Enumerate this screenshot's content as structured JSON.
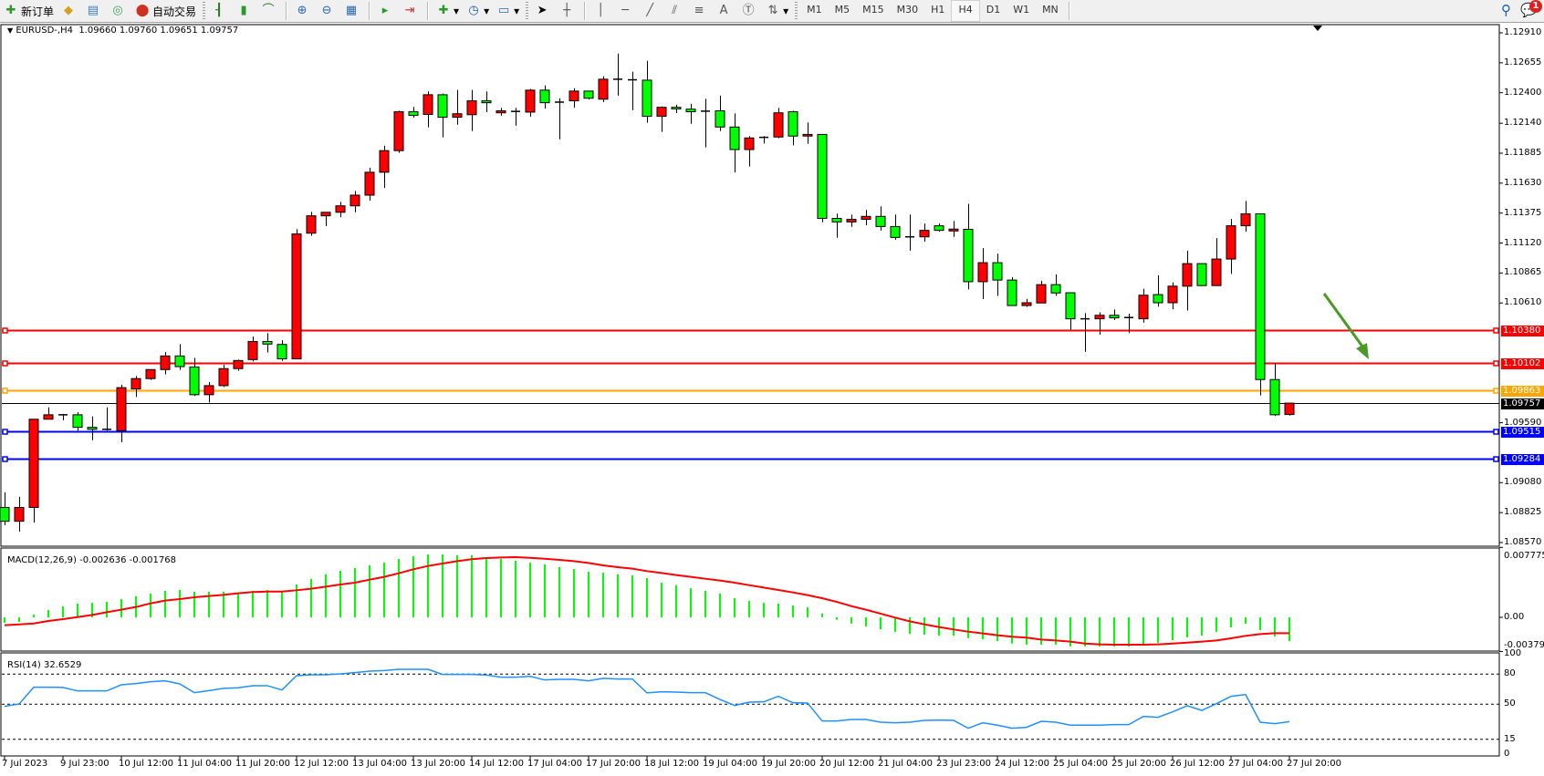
{
  "toolbar": {
    "new_order_label": "新订单",
    "auto_trading_label": "自动交易",
    "icons": [
      "new-order-icon",
      "market-watch-icon",
      "navigator-icon",
      "signals-icon",
      "auto-trading-icon",
      "bar-chart-icon",
      "candlestick-icon",
      "line-chart-icon",
      "zoom-in-icon",
      "zoom-out-icon",
      "tile-windows-icon",
      "auto-scroll-icon",
      "chart-shift-icon",
      "indicators-icon",
      "periods-icon",
      "templates-icon",
      "cursor-icon",
      "crosshair-icon",
      "vertical-line-icon",
      "horizontal-line-icon",
      "trendline-icon",
      "equidistant-channel-icon",
      "fibonacci-icon",
      "text-icon",
      "text-label-icon",
      "arrows-icon"
    ],
    "timeframes": [
      "M1",
      "M5",
      "M15",
      "M30",
      "H1",
      "H4",
      "D1",
      "W1",
      "MN"
    ],
    "active_timeframe": "H4",
    "notification_count": "1"
  },
  "chart": {
    "header": "EURUSD-,H4  1.09660 1.09760 1.09651 1.09757",
    "price_axis_labels": [
      "1.12910",
      "1.12655",
      "1.12400",
      "1.12140",
      "1.11885",
      "1.11630",
      "1.11375",
      "1.11120",
      "1.10865",
      "1.10610",
      "1.09590",
      "1.09080",
      "1.08825",
      "1.08570"
    ],
    "price_lines": [
      {
        "value": "1.10380",
        "color": "#ff0000"
      },
      {
        "value": "1.10102",
        "color": "#ff0000"
      },
      {
        "value": "1.09863",
        "color": "#ffa500"
      },
      {
        "value": "1.09757",
        "color": "#000000"
      },
      {
        "value": "1.09515",
        "color": "#0000ff"
      },
      {
        "value": "1.09284",
        "color": "#0000ff"
      }
    ],
    "bull_color": "#ff0000",
    "bear_color": "#00ff00",
    "annotation": {
      "type": "arrow",
      "color": "#4a9a2a",
      "from_price": 1.1069,
      "to_price": 1.1013,
      "direction": "down"
    },
    "time_labels": [
      "7 Jul 2023",
      "9 Jul 23:00",
      "10 Jul 12:00",
      "11 Jul 04:00",
      "11 Jul 20:00",
      "12 Jul 12:00",
      "13 Jul 04:00",
      "13 Jul 20:00",
      "14 Jul 12:00",
      "17 Jul 04:00",
      "17 Jul 20:00",
      "18 Jul 12:00",
      "19 Jul 04:00",
      "19 Jul 20:00",
      "20 Jul 12:00",
      "21 Jul 04:00",
      "23 Jul 23:00",
      "24 Jul 12:00",
      "25 Jul 04:00",
      "25 Jul 20:00",
      "26 Jul 12:00",
      "27 Jul 04:00",
      "27 Jul 20:00"
    ]
  },
  "macd": {
    "label": "MACD(12,26,9) -0.002636 -0.001768",
    "axis_labels": [
      "0.007775",
      "0.00",
      "-0.003797"
    ],
    "hist_color": "#00ff00",
    "signal_color": "#ff0000"
  },
  "rsi": {
    "label": "RSI(14) 32.6529",
    "axis_labels": [
      "100",
      "80",
      "50",
      "15",
      "0"
    ],
    "levels": [
      80,
      50,
      15
    ],
    "line_color": "#1e90ff"
  },
  "chart_data": {
    "type": "candlestick",
    "symbol": "EURUSD-",
    "timeframe": "H4",
    "ohlc": [
      [
        1.08869,
        1.08998,
        1.08718,
        1.08751
      ],
      [
        1.08751,
        1.0896,
        1.08663,
        1.08869
      ],
      [
        1.08869,
        1.0962,
        1.0874,
        1.0962
      ],
      [
        1.0962,
        1.09721,
        1.0962,
        1.09658
      ],
      [
        1.09655,
        1.09666,
        1.09611,
        1.09658
      ],
      [
        1.09658,
        1.0968,
        1.09523,
        1.09551
      ],
      [
        1.09551,
        1.09644,
        1.09441,
        1.09534
      ],
      [
        1.09534,
        1.09721,
        1.09523,
        1.09529
      ],
      [
        1.09523,
        1.09914,
        1.09424,
        1.09889
      ],
      [
        1.09878,
        1.09988,
        1.09809,
        1.09966
      ],
      [
        1.09966,
        1.10043,
        1.09955,
        1.10043
      ],
      [
        1.10043,
        1.10192,
        1.10002,
        1.10159
      ],
      [
        1.10159,
        1.1026,
        1.1004,
        1.10068
      ],
      [
        1.10065,
        1.10142,
        1.09818,
        1.09829
      ],
      [
        1.09829,
        1.09936,
        1.09763,
        1.09906
      ],
      [
        1.09906,
        1.10084,
        1.09895,
        1.10051
      ],
      [
        1.10051,
        1.10128,
        1.10032,
        1.1012
      ],
      [
        1.10128,
        1.10324,
        1.10112,
        1.10282
      ],
      [
        1.10282,
        1.10354,
        1.10189,
        1.1026
      ],
      [
        1.10257,
        1.10293,
        1.10117,
        1.10134
      ],
      [
        1.10134,
        1.11239,
        1.10134,
        1.11198
      ],
      [
        1.11204,
        1.11385,
        1.11182,
        1.11352
      ],
      [
        1.11352,
        1.11382,
        1.11264,
        1.11382
      ],
      [
        1.11382,
        1.1147,
        1.11341,
        1.11437
      ],
      [
        1.11437,
        1.11564,
        1.11381,
        1.11528
      ],
      [
        1.11528,
        1.11762,
        1.11481,
        1.11723
      ],
      [
        1.11723,
        1.11949,
        1.11589,
        1.11907
      ],
      [
        1.11907,
        1.12246,
        1.11888,
        1.12238
      ],
      [
        1.12238,
        1.12279,
        1.12188,
        1.12207
      ],
      [
        1.12215,
        1.12411,
        1.12105,
        1.12383
      ],
      [
        1.12383,
        1.12394,
        1.1202,
        1.12191
      ],
      [
        1.12191,
        1.12425,
        1.12128,
        1.12221
      ],
      [
        1.12213,
        1.12425,
        1.12073,
        1.12331
      ],
      [
        1.12331,
        1.12411,
        1.12235,
        1.12315
      ],
      [
        1.12229,
        1.12271,
        1.12205,
        1.12246
      ],
      [
        1.1224,
        1.12271,
        1.12119,
        1.12241
      ],
      [
        1.12235,
        1.12433,
        1.12196,
        1.12422
      ],
      [
        1.12422,
        1.12463,
        1.12265,
        1.12315
      ],
      [
        1.1232,
        1.12353,
        1.12004,
        1.12318
      ],
      [
        1.12331,
        1.12438,
        1.12273,
        1.12414
      ],
      [
        1.12414,
        1.12414,
        1.12342,
        1.12353
      ],
      [
        1.12345,
        1.1254,
        1.1232,
        1.12515
      ],
      [
        1.12515,
        1.12733,
        1.12375,
        1.12515
      ],
      [
        1.1251,
        1.12579,
        1.12251,
        1.12509
      ],
      [
        1.12507,
        1.12672,
        1.12144,
        1.12199
      ],
      [
        1.12199,
        1.12284,
        1.12067,
        1.12276
      ],
      [
        1.12276,
        1.12298,
        1.12227,
        1.12262
      ],
      [
        1.1226,
        1.12306,
        1.12136,
        1.12238
      ],
      [
        1.12243,
        1.12348,
        1.11935,
        1.12242
      ],
      [
        1.12246,
        1.12375,
        1.12073,
        1.12108
      ],
      [
        1.12108,
        1.12224,
        1.11721,
        1.11916
      ],
      [
        1.11916,
        1.12031,
        1.11773,
        1.12015
      ],
      [
        1.12018,
        1.12031,
        1.11968,
        1.1202
      ],
      [
        1.12023,
        1.12271,
        1.12012,
        1.12229
      ],
      [
        1.12238,
        1.12246,
        1.11952,
        1.12031
      ],
      [
        1.12031,
        1.12147,
        1.11965,
        1.12045
      ],
      [
        1.12045,
        1.12045,
        1.11297,
        1.1133
      ],
      [
        1.1133,
        1.11371,
        1.11165,
        1.113
      ],
      [
        1.113,
        1.11363,
        1.11258,
        1.11322
      ],
      [
        1.11322,
        1.11402,
        1.11272,
        1.11347
      ],
      [
        1.11347,
        1.11432,
        1.11226,
        1.11261
      ],
      [
        1.11261,
        1.11363,
        1.11149,
        1.11168
      ],
      [
        1.11173,
        1.11363,
        1.11055,
        1.11173
      ],
      [
        1.11173,
        1.11286,
        1.11132,
        1.11228
      ],
      [
        1.11267,
        1.11286,
        1.11217,
        1.11228
      ],
      [
        1.11223,
        1.11308,
        1.11173,
        1.11239
      ],
      [
        1.11237,
        1.11454,
        1.10725,
        1.10791
      ],
      [
        1.10791,
        1.11077,
        1.10643,
        1.10953
      ],
      [
        1.10953,
        1.1103,
        1.1067,
        1.10805
      ],
      [
        1.10805,
        1.1083,
        1.10588,
        1.10588
      ],
      [
        1.10588,
        1.10645,
        1.10577,
        1.10612
      ],
      [
        1.1061,
        1.10799,
        1.1061,
        1.10766
      ],
      [
        1.10766,
        1.10854,
        1.1067,
        1.10695
      ],
      [
        1.10697,
        1.10697,
        1.10381,
        1.10475
      ],
      [
        1.10475,
        1.10524,
        1.10194,
        1.10475
      ],
      [
        1.10475,
        1.1053,
        1.1034,
        1.10505
      ],
      [
        1.10505,
        1.10555,
        1.10464,
        1.10483
      ],
      [
        1.10486,
        1.10519,
        1.10354,
        1.10486
      ],
      [
        1.10475,
        1.10731,
        1.10442,
        1.10676
      ],
      [
        1.10681,
        1.10846,
        1.10579,
        1.10612
      ],
      [
        1.10612,
        1.10786,
        1.10557,
        1.10753
      ],
      [
        1.10753,
        1.11055,
        1.10546,
        1.10945
      ],
      [
        1.10945,
        1.10945,
        1.10758,
        1.10758
      ],
      [
        1.10758,
        1.11162,
        1.10758,
        1.10984
      ],
      [
        1.10984,
        1.11325,
        1.10857,
        1.11267
      ],
      [
        1.11267,
        1.11479,
        1.11217,
        1.11369
      ],
      [
        1.11369,
        1.11369,
        1.09823,
        1.09958
      ],
      [
        1.09958,
        1.10098,
        1.09647,
        1.09658
      ],
      [
        1.0966,
        1.0976,
        1.09651,
        1.09757
      ]
    ],
    "price_range": [
      1.0857,
      1.1291
    ],
    "macd_hist": [
      -0.00061,
      -0.00051,
      0.0003,
      0.00081,
      0.00122,
      0.00152,
      0.00162,
      0.00172,
      0.00203,
      0.00233,
      0.00264,
      0.00294,
      0.00304,
      0.00284,
      0.00284,
      0.00284,
      0.00274,
      0.00294,
      0.00304,
      0.00294,
      0.00365,
      0.00426,
      0.00477,
      0.00517,
      0.00548,
      0.00578,
      0.00608,
      0.00649,
      0.00679,
      0.007,
      0.007,
      0.0069,
      0.0069,
      0.00659,
      0.00649,
      0.00629,
      0.00608,
      0.00588,
      0.00558,
      0.00537,
      0.00507,
      0.00497,
      0.00477,
      0.00466,
      0.00436,
      0.00385,
      0.00358,
      0.00324,
      0.00294,
      0.00264,
      0.00213,
      0.00183,
      0.00162,
      0.00152,
      0.00132,
      0.00111,
      0.00041,
      -0.00027,
      -0.00068,
      -0.00101,
      -0.00132,
      -0.00162,
      -0.00183,
      -0.00193,
      -0.00203,
      -0.00203,
      -0.0023,
      -0.00243,
      -0.00264,
      -0.00291,
      -0.00304,
      -0.00304,
      -0.00304,
      -0.00324,
      -0.00324,
      -0.00324,
      -0.00324,
      -0.00324,
      -0.00304,
      -0.00284,
      -0.00254,
      -0.00223,
      -0.00203,
      -0.00162,
      -0.00112,
      -0.00071,
      -0.00142,
      -0.00213,
      -0.002636
    ],
    "macd_signal": [
      -0.00088,
      -0.00078,
      -0.00068,
      -0.00041,
      -0.0002,
      3e-05,
      0.00027,
      0.00057,
      0.00085,
      0.00115,
      0.00155,
      0.00186,
      0.00203,
      0.00223,
      0.00237,
      0.0025,
      0.00267,
      0.00281,
      0.00287,
      0.00287,
      0.00301,
      0.00318,
      0.00341,
      0.00365,
      0.00385,
      0.00419,
      0.0045,
      0.0049,
      0.00534,
      0.00571,
      0.00598,
      0.00625,
      0.00646,
      0.00659,
      0.00666,
      0.00669,
      0.00662,
      0.00652,
      0.00639,
      0.00625,
      0.00605,
      0.00578,
      0.00558,
      0.00541,
      0.00514,
      0.00493,
      0.0047,
      0.0045,
      0.00429,
      0.00409,
      0.00385,
      0.00358,
      0.00331,
      0.00304,
      0.00277,
      0.00247,
      0.00213,
      0.00172,
      0.00125,
      0.00085,
      0.00041,
      -3e-05,
      -0.00044,
      -0.00078,
      -0.00108,
      -0.00135,
      -0.00159,
      -0.00179,
      -0.00199,
      -0.00216,
      -0.00226,
      -0.00247,
      -0.00257,
      -0.0027,
      -0.00291,
      -0.00301,
      -0.00304,
      -0.00304,
      -0.00304,
      -0.00301,
      -0.00291,
      -0.00281,
      -0.0027,
      -0.00257,
      -0.00233,
      -0.00206,
      -0.00186,
      -0.00176,
      -0.001768
    ],
    "macd_range": [
      -0.003797,
      0.007775
    ],
    "rsi": [
      47.9,
      50.3,
      67,
      67,
      66.7,
      63.3,
      63.3,
      63.3,
      69.4,
      70.6,
      72.4,
      73.3,
      70.3,
      61.5,
      63.6,
      65.8,
      66.4,
      68.5,
      68.5,
      64.2,
      78.5,
      79.4,
      79.4,
      80.3,
      81.5,
      83,
      83.6,
      84.8,
      84.8,
      84.8,
      79.7,
      79.7,
      79.7,
      79.1,
      77,
      77,
      77.9,
      74.2,
      74.8,
      74.8,
      73.3,
      75.8,
      75.2,
      75.2,
      61.3,
      62.4,
      62.1,
      61.5,
      61.5,
      54.8,
      48.8,
      52.1,
      52.4,
      57.9,
      51.5,
      51.2,
      33.3,
      33.3,
      34.8,
      34.8,
      32.1,
      31.5,
      32.1,
      33.9,
      34.2,
      33.9,
      26.1,
      31.5,
      29.1,
      26.1,
      27,
      33,
      32.1,
      29.1,
      29.1,
      29.1,
      29.7,
      29.7,
      37.9,
      37,
      42.4,
      48.5,
      43.9,
      50.6,
      57.9,
      59.7,
      32.1,
      30.6,
      32.65
    ],
    "rsi_range": [
      0,
      100
    ]
  }
}
